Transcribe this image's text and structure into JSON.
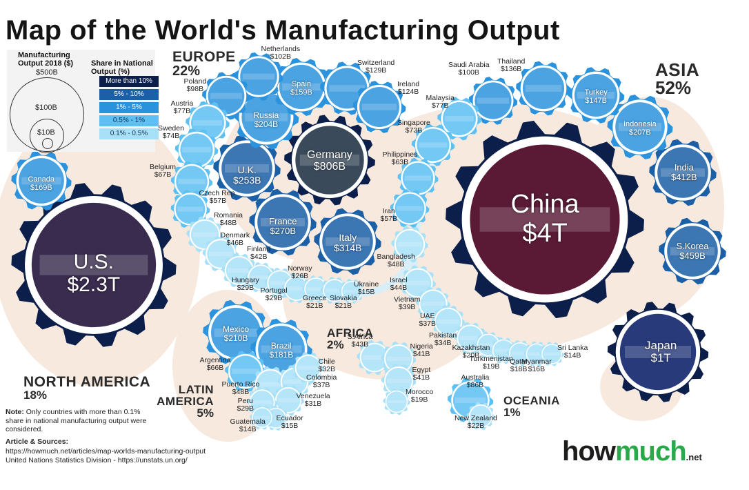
{
  "title": "Map of the World's Manufacturing Output",
  "legend": {
    "size_title": "Manufacturing Output 2018 ($)",
    "size_labels": [
      "$500B",
      "$100B",
      "$10B"
    ],
    "share_title": "Share in National Output (%)",
    "share_bins": [
      {
        "label": "More than 10%",
        "color": "#0b1f4a",
        "text_color": "#ffffff"
      },
      {
        "label": "5% - 10%",
        "color": "#1b5fa6",
        "text_color": "#ffffff"
      },
      {
        "label": "1% - 5%",
        "color": "#2b93dd",
        "text_color": "#ffffff"
      },
      {
        "label": "0.5% - 1%",
        "color": "#5cc0f2",
        "text_color": "#10304f"
      },
      {
        "label": "0.1% - 0.5%",
        "color": "#a8e0f8",
        "text_color": "#10304f"
      }
    ]
  },
  "regions": [
    {
      "key": "europe",
      "name": "EUROPE",
      "pct": "22%"
    },
    {
      "key": "asia",
      "name": "ASIA",
      "pct": "52%"
    },
    {
      "key": "north_america",
      "name": "NORTH AMERICA",
      "pct": "18%"
    },
    {
      "key": "latin_america",
      "name": "LATIN AMERICA",
      "pct": "5%"
    },
    {
      "key": "africa",
      "name": "AFRICA",
      "pct": "2%"
    },
    {
      "key": "oceania",
      "name": "OCEANIA",
      "pct": "1%"
    }
  ],
  "note": {
    "bold": "Note:",
    "text": "Only countries with more than 0.1% share in national manufacturing output were considered."
  },
  "sources": {
    "heading": "Article & Sources:",
    "lines": [
      "https://howmuch.net/articles/map-worlds-manufacturing-output",
      "United Nations Statistics Division - https://unstats.un.org/"
    ]
  },
  "logo": {
    "part1": "how",
    "part2": "much",
    "suffix": ".net",
    "color1": "#1d1d1b",
    "color2": "#2aa84a"
  },
  "chart_data": {
    "type": "bubble",
    "unit": "Manufacturing Output 2018 ($)",
    "countries": [
      {
        "name": "China",
        "value": "$4T",
        "value_billion": 4000,
        "region": "asia",
        "share": "More than 10%"
      },
      {
        "name": "U.S.",
        "value": "$2.3T",
        "value_billion": 2300,
        "region": "north_america",
        "share": "More than 10%"
      },
      {
        "name": "Japan",
        "value": "$1T",
        "value_billion": 1000,
        "region": "asia",
        "share": "More than 10%"
      },
      {
        "name": "Germany",
        "value": "$806B",
        "value_billion": 806,
        "region": "europe",
        "share": "More than 10%"
      },
      {
        "name": "S.Korea",
        "value": "$459B",
        "value_billion": 459,
        "region": "asia",
        "share": "5% - 10%"
      },
      {
        "name": "India",
        "value": "$412B",
        "value_billion": 412,
        "region": "asia",
        "share": "5% - 10%"
      },
      {
        "name": "Italy",
        "value": "$314B",
        "value_billion": 314,
        "region": "europe",
        "share": "5% - 10%"
      },
      {
        "name": "France",
        "value": "$270B",
        "value_billion": 270,
        "region": "europe",
        "share": "5% - 10%"
      },
      {
        "name": "U.K.",
        "value": "$253B",
        "value_billion": 253,
        "region": "europe",
        "share": "5% - 10%"
      },
      {
        "name": "Mexico",
        "value": "$210B",
        "value_billion": 210,
        "region": "latin_america",
        "share": "1% - 5%"
      },
      {
        "name": "Indonesia",
        "value": "$207B",
        "value_billion": 207,
        "region": "asia",
        "share": "1% - 5%"
      },
      {
        "name": "Russia",
        "value": "$204B",
        "value_billion": 204,
        "region": "europe",
        "share": "1% - 5%"
      },
      {
        "name": "Brazil",
        "value": "$181B",
        "value_billion": 181,
        "region": "latin_america",
        "share": "1% - 5%"
      },
      {
        "name": "Canada",
        "value": "$169B",
        "value_billion": 169,
        "region": "north_america",
        "share": "1% - 5%"
      },
      {
        "name": "Spain",
        "value": "$159B",
        "value_billion": 159,
        "region": "europe",
        "share": "1% - 5%"
      },
      {
        "name": "Turkey",
        "value": "$147B",
        "value_billion": 147,
        "region": "asia",
        "share": "1% - 5%"
      },
      {
        "name": "Thailand",
        "value": "$136B",
        "value_billion": 136,
        "region": "asia",
        "share": "1% - 5%"
      },
      {
        "name": "Switzerland",
        "value": "$129B",
        "value_billion": 129,
        "region": "europe",
        "share": "1% - 5%"
      },
      {
        "name": "Ireland",
        "value": "$124B",
        "value_billion": 124,
        "region": "europe",
        "share": "1% - 5%"
      },
      {
        "name": "Netherlands",
        "value": "$102B",
        "value_billion": 102,
        "region": "europe",
        "share": "1% - 5%"
      },
      {
        "name": "Saudi Arabia",
        "value": "$100B",
        "value_billion": 100,
        "region": "asia",
        "share": "1% - 5%"
      },
      {
        "name": "Poland",
        "value": "$98B",
        "value_billion": 98,
        "region": "europe",
        "share": "1% - 5%"
      },
      {
        "name": "Australia",
        "value": "$86B",
        "value_billion": 86,
        "region": "oceania",
        "share": "0.5% - 1%"
      },
      {
        "name": "Austria",
        "value": "$77B",
        "value_billion": 77,
        "region": "europe",
        "share": "0.5% - 1%"
      },
      {
        "name": "Malaysia",
        "value": "$77B",
        "value_billion": 77,
        "region": "asia",
        "share": "0.5% - 1%"
      },
      {
        "name": "Sweden",
        "value": "$74B",
        "value_billion": 74,
        "region": "europe",
        "share": "0.5% - 1%"
      },
      {
        "name": "Singapore",
        "value": "$73B",
        "value_billion": 73,
        "region": "asia",
        "share": "0.5% - 1%"
      },
      {
        "name": "Belgium",
        "value": "$67B",
        "value_billion": 67,
        "region": "europe",
        "share": "0.5% - 1%"
      },
      {
        "name": "Argentina",
        "value": "$66B",
        "value_billion": 66,
        "region": "latin_america",
        "share": "0.5% - 1%"
      },
      {
        "name": "Philippines",
        "value": "$63B",
        "value_billion": 63,
        "region": "asia",
        "share": "0.5% - 1%"
      },
      {
        "name": "Czech Rep.",
        "value": "$57B",
        "value_billion": 57,
        "region": "europe",
        "share": "0.5% - 1%"
      },
      {
        "name": "Iran",
        "value": "$57B",
        "value_billion": 57,
        "region": "asia",
        "share": "0.5% - 1%"
      },
      {
        "name": "Romania",
        "value": "$48B",
        "value_billion": 48,
        "region": "europe",
        "share": "0.1% - 0.5%"
      },
      {
        "name": "Bangladesh",
        "value": "$48B",
        "value_billion": 48,
        "region": "asia",
        "share": "0.1% - 0.5%"
      },
      {
        "name": "Puerto Rico",
        "value": "$48B",
        "value_billion": 48,
        "region": "latin_america",
        "share": "0.1% - 0.5%"
      },
      {
        "name": "Denmark",
        "value": "$46B",
        "value_billion": 46,
        "region": "europe",
        "share": "0.1% - 0.5%"
      },
      {
        "name": "Israel",
        "value": "$44B",
        "value_billion": 44,
        "region": "asia",
        "share": "0.1% - 0.5%"
      },
      {
        "name": "S.Africa",
        "value": "$43B",
        "value_billion": 43,
        "region": "africa",
        "share": "0.1% - 0.5%"
      },
      {
        "name": "Finland",
        "value": "$42B",
        "value_billion": 42,
        "region": "europe",
        "share": "0.1% - 0.5%"
      },
      {
        "name": "Nigeria",
        "value": "$41B",
        "value_billion": 41,
        "region": "africa",
        "share": "0.1% - 0.5%"
      },
      {
        "name": "Egypt",
        "value": "$41B",
        "value_billion": 41,
        "region": "africa",
        "share": "0.1% - 0.5%"
      },
      {
        "name": "Vietnam",
        "value": "$39B",
        "value_billion": 39,
        "region": "asia",
        "share": "0.1% - 0.5%"
      },
      {
        "name": "UAE",
        "value": "$37B",
        "value_billion": 37,
        "region": "asia",
        "share": "0.1% - 0.5%"
      },
      {
        "name": "Colombia",
        "value": "$37B",
        "value_billion": 37,
        "region": "latin_america",
        "share": "0.1% - 0.5%"
      },
      {
        "name": "Pakistan",
        "value": "$34B",
        "value_billion": 34,
        "region": "asia",
        "share": "0.1% - 0.5%"
      },
      {
        "name": "Chile",
        "value": "$32B",
        "value_billion": 32,
        "region": "latin_america",
        "share": "0.1% - 0.5%"
      },
      {
        "name": "Venezuela",
        "value": "$31B",
        "value_billion": 31,
        "region": "latin_america",
        "share": "0.1% - 0.5%"
      },
      {
        "name": "Hungary",
        "value": "$29B",
        "value_billion": 29,
        "region": "europe",
        "share": "0.1% - 0.5%"
      },
      {
        "name": "Portugal",
        "value": "$29B",
        "value_billion": 29,
        "region": "europe",
        "share": "0.1% - 0.5%"
      },
      {
        "name": "Peru",
        "value": "$29B",
        "value_billion": 29,
        "region": "latin_america",
        "share": "0.1% - 0.5%"
      },
      {
        "name": "Norway",
        "value": "$26B",
        "value_billion": 26,
        "region": "europe",
        "share": "0.1% - 0.5%"
      },
      {
        "name": "New Zealand",
        "value": "$22B",
        "value_billion": 22,
        "region": "oceania",
        "share": "0.1% - 0.5%"
      },
      {
        "name": "Greece",
        "value": "$21B",
        "value_billion": 21,
        "region": "europe",
        "share": "0.1% - 0.5%"
      },
      {
        "name": "Slovakia",
        "value": "$21B",
        "value_billion": 21,
        "region": "europe",
        "share": "0.1% - 0.5%"
      },
      {
        "name": "Kazakhstan",
        "value": "$20B",
        "value_billion": 20,
        "region": "asia",
        "share": "0.1% - 0.5%"
      },
      {
        "name": "Turkmenistan",
        "value": "$19B",
        "value_billion": 19,
        "region": "asia",
        "share": "0.1% - 0.5%"
      },
      {
        "name": "Morocco",
        "value": "$19B",
        "value_billion": 19,
        "region": "africa",
        "share": "0.1% - 0.5%"
      },
      {
        "name": "Qatar",
        "value": "$18B",
        "value_billion": 18,
        "region": "asia",
        "share": "0.1% - 0.5%"
      },
      {
        "name": "Myanmar",
        "value": "$16B",
        "value_billion": 16,
        "region": "asia",
        "share": "0.1% - 0.5%"
      },
      {
        "name": "Ukraine",
        "value": "$15B",
        "value_billion": 15,
        "region": "europe",
        "share": "0.1% - 0.5%"
      },
      {
        "name": "Ecuador",
        "value": "$15B",
        "value_billion": 15,
        "region": "latin_america",
        "share": "0.1% - 0.5%"
      },
      {
        "name": "Guatemala",
        "value": "$14B",
        "value_billion": 14,
        "region": "latin_america",
        "share": "0.1% - 0.5%"
      },
      {
        "name": "Sri Lanka",
        "value": "$14B",
        "value_billion": 14,
        "region": "asia",
        "share": "0.1% - 0.5%"
      }
    ]
  }
}
